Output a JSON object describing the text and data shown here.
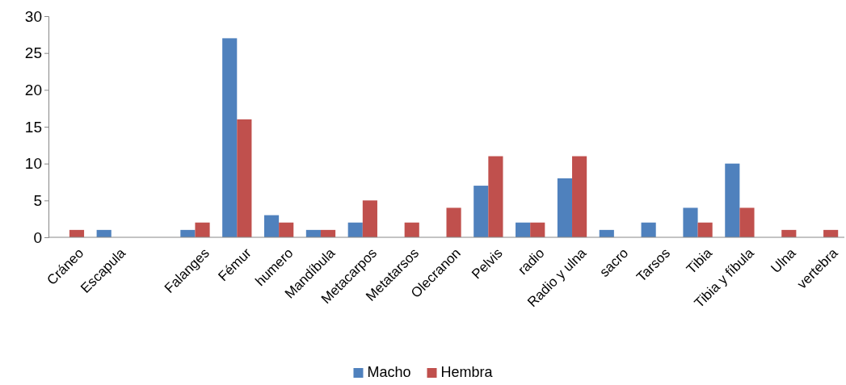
{
  "chart_data": {
    "type": "bar",
    "categories": [
      "Cráneo",
      "Escapula",
      null,
      "Falanges",
      "Fémur",
      "humero",
      "Mandíbula",
      "Metacarpos",
      "Metatarsos",
      "Olecranon",
      "Pelvis",
      "radio",
      "Radio y ulna",
      "sacro",
      "Tarsos",
      "Tibia",
      "Tibia y fíbula",
      "Ulna",
      "vertebra"
    ],
    "series": [
      {
        "name": "Macho",
        "color": "#4f81bd",
        "values": [
          0,
          1,
          0,
          1,
          27,
          3,
          1,
          2,
          0,
          0,
          7,
          2,
          8,
          1,
          2,
          4,
          10,
          0,
          0
        ]
      },
      {
        "name": "Hembra",
        "color": "#c0504d",
        "values": [
          1,
          0,
          0,
          2,
          16,
          2,
          1,
          5,
          2,
          4,
          11,
          2,
          11,
          0,
          0,
          2,
          4,
          1,
          1
        ]
      }
    ],
    "ylim": [
      0,
      30
    ],
    "yticks": [
      0,
      5,
      10,
      15,
      20,
      25,
      30
    ],
    "grid": false,
    "legend": "bottom"
  }
}
